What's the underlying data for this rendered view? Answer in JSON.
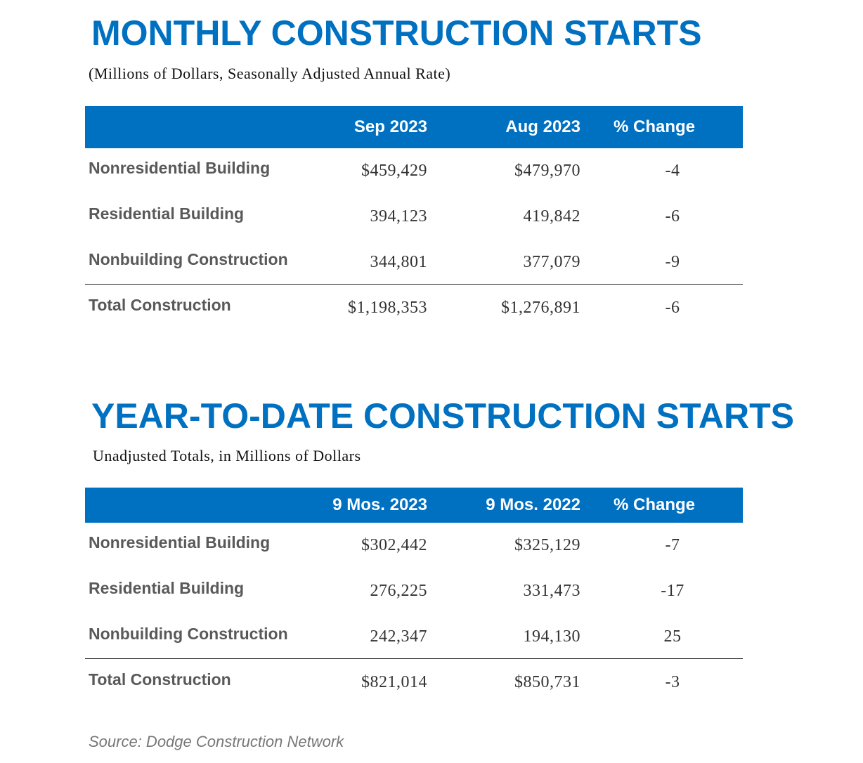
{
  "monthly": {
    "title": "MONTHLY CONSTRUCTION STARTS",
    "subtitle": "(Millions of Dollars, Seasonally Adjusted Annual Rate)",
    "headers": [
      "Sep 2023",
      "Aug 2023",
      "% Change"
    ],
    "rows": [
      {
        "label": "Nonresidential Building",
        "v1": "$459,429",
        "v2": "$479,970",
        "pct": "-4"
      },
      {
        "label": "Residential Building",
        "v1": "394,123",
        "v2": "419,842",
        "pct": "-6"
      },
      {
        "label": "Nonbuilding Construction",
        "v1": "344,801",
        "v2": "377,079",
        "pct": "-9"
      }
    ],
    "total": {
      "label": "Total Construction",
      "v1": "$1,198,353",
      "v2": "$1,276,891",
      "pct": "-6"
    }
  },
  "ytd": {
    "title": "YEAR-TO-DATE CONSTRUCTION STARTS",
    "subtitle": "Unadjusted Totals, in Millions of Dollars",
    "headers": [
      "9 Mos. 2023",
      "9 Mos. 2022",
      "% Change"
    ],
    "rows": [
      {
        "label": "Nonresidential Building",
        "v1": "$302,442",
        "v2": "$325,129",
        "pct": "-7"
      },
      {
        "label": "Residential Building",
        "v1": "276,225",
        "v2": "331,473",
        "pct": "-17"
      },
      {
        "label": "Nonbuilding Construction",
        "v1": "242,347",
        "v2": "194,130",
        "pct": "25"
      }
    ],
    "total": {
      "label": "Total Construction",
      "v1": "$821,014",
      "v2": "$850,731",
      "pct": "-3"
    }
  },
  "source": "Source: Dodge Construction Network",
  "colors": {
    "accent": "#0070C0",
    "label": "#595959"
  }
}
